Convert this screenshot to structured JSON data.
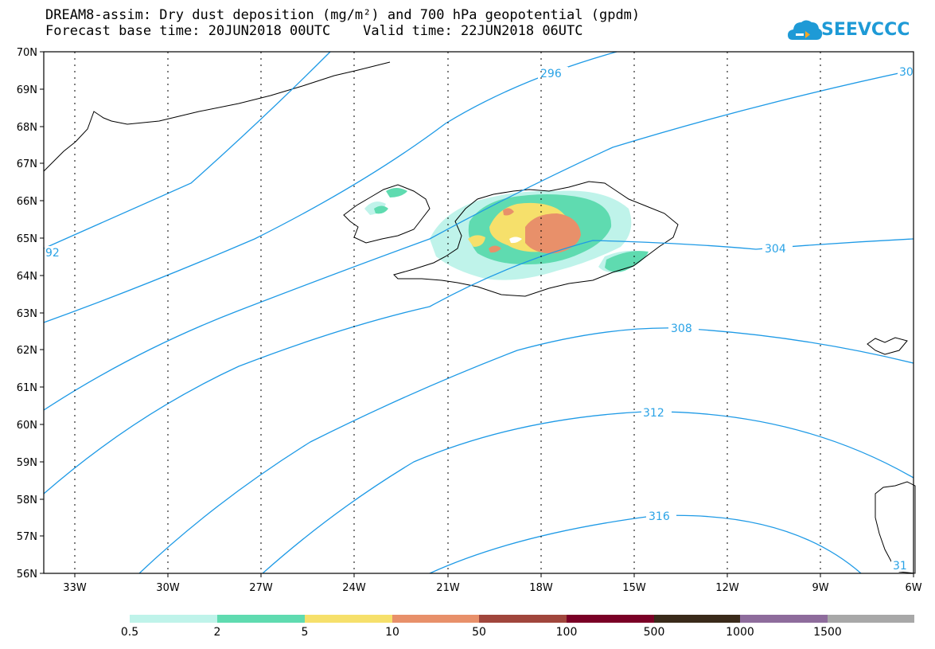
{
  "title": {
    "line1": "DREAM8-assim: Dry dust deposition (mg/m²) and 700 hPa geopotential (gpdm)",
    "line2": "Forecast base time: 20JUN2018 00UTC    Valid time: 22JUN2018 06UTC"
  },
  "logo": {
    "text": "SEEVCCC",
    "icon": "cloud-icon",
    "color": "#1e9ad6"
  },
  "map": {
    "lat_labels": [
      "70N",
      "69N",
      "68N",
      "67N",
      "66N",
      "65N",
      "64N",
      "63N",
      "62N",
      "61N",
      "60N",
      "59N",
      "58N",
      "57N",
      "56N"
    ],
    "lon_labels": [
      "33W",
      "30W",
      "27W",
      "24W",
      "21W",
      "18W",
      "15W",
      "12W",
      "9W",
      "6W"
    ],
    "contour_color": "#1e9ae6",
    "contour_labels": [
      "296",
      "30",
      "92",
      "304",
      "308",
      "312",
      "316",
      "31"
    ]
  },
  "legend": {
    "colors": [
      "#bff3ea",
      "#5fdbb0",
      "#f6e06b",
      "#e8906a",
      "#a0463c",
      "#7a0026",
      "#3a2a1a",
      "#8e6c9c",
      "#a8a8a8"
    ],
    "labels": [
      "0.5",
      "2",
      "5",
      "10",
      "50",
      "100",
      "500",
      "1000",
      "1500"
    ]
  }
}
